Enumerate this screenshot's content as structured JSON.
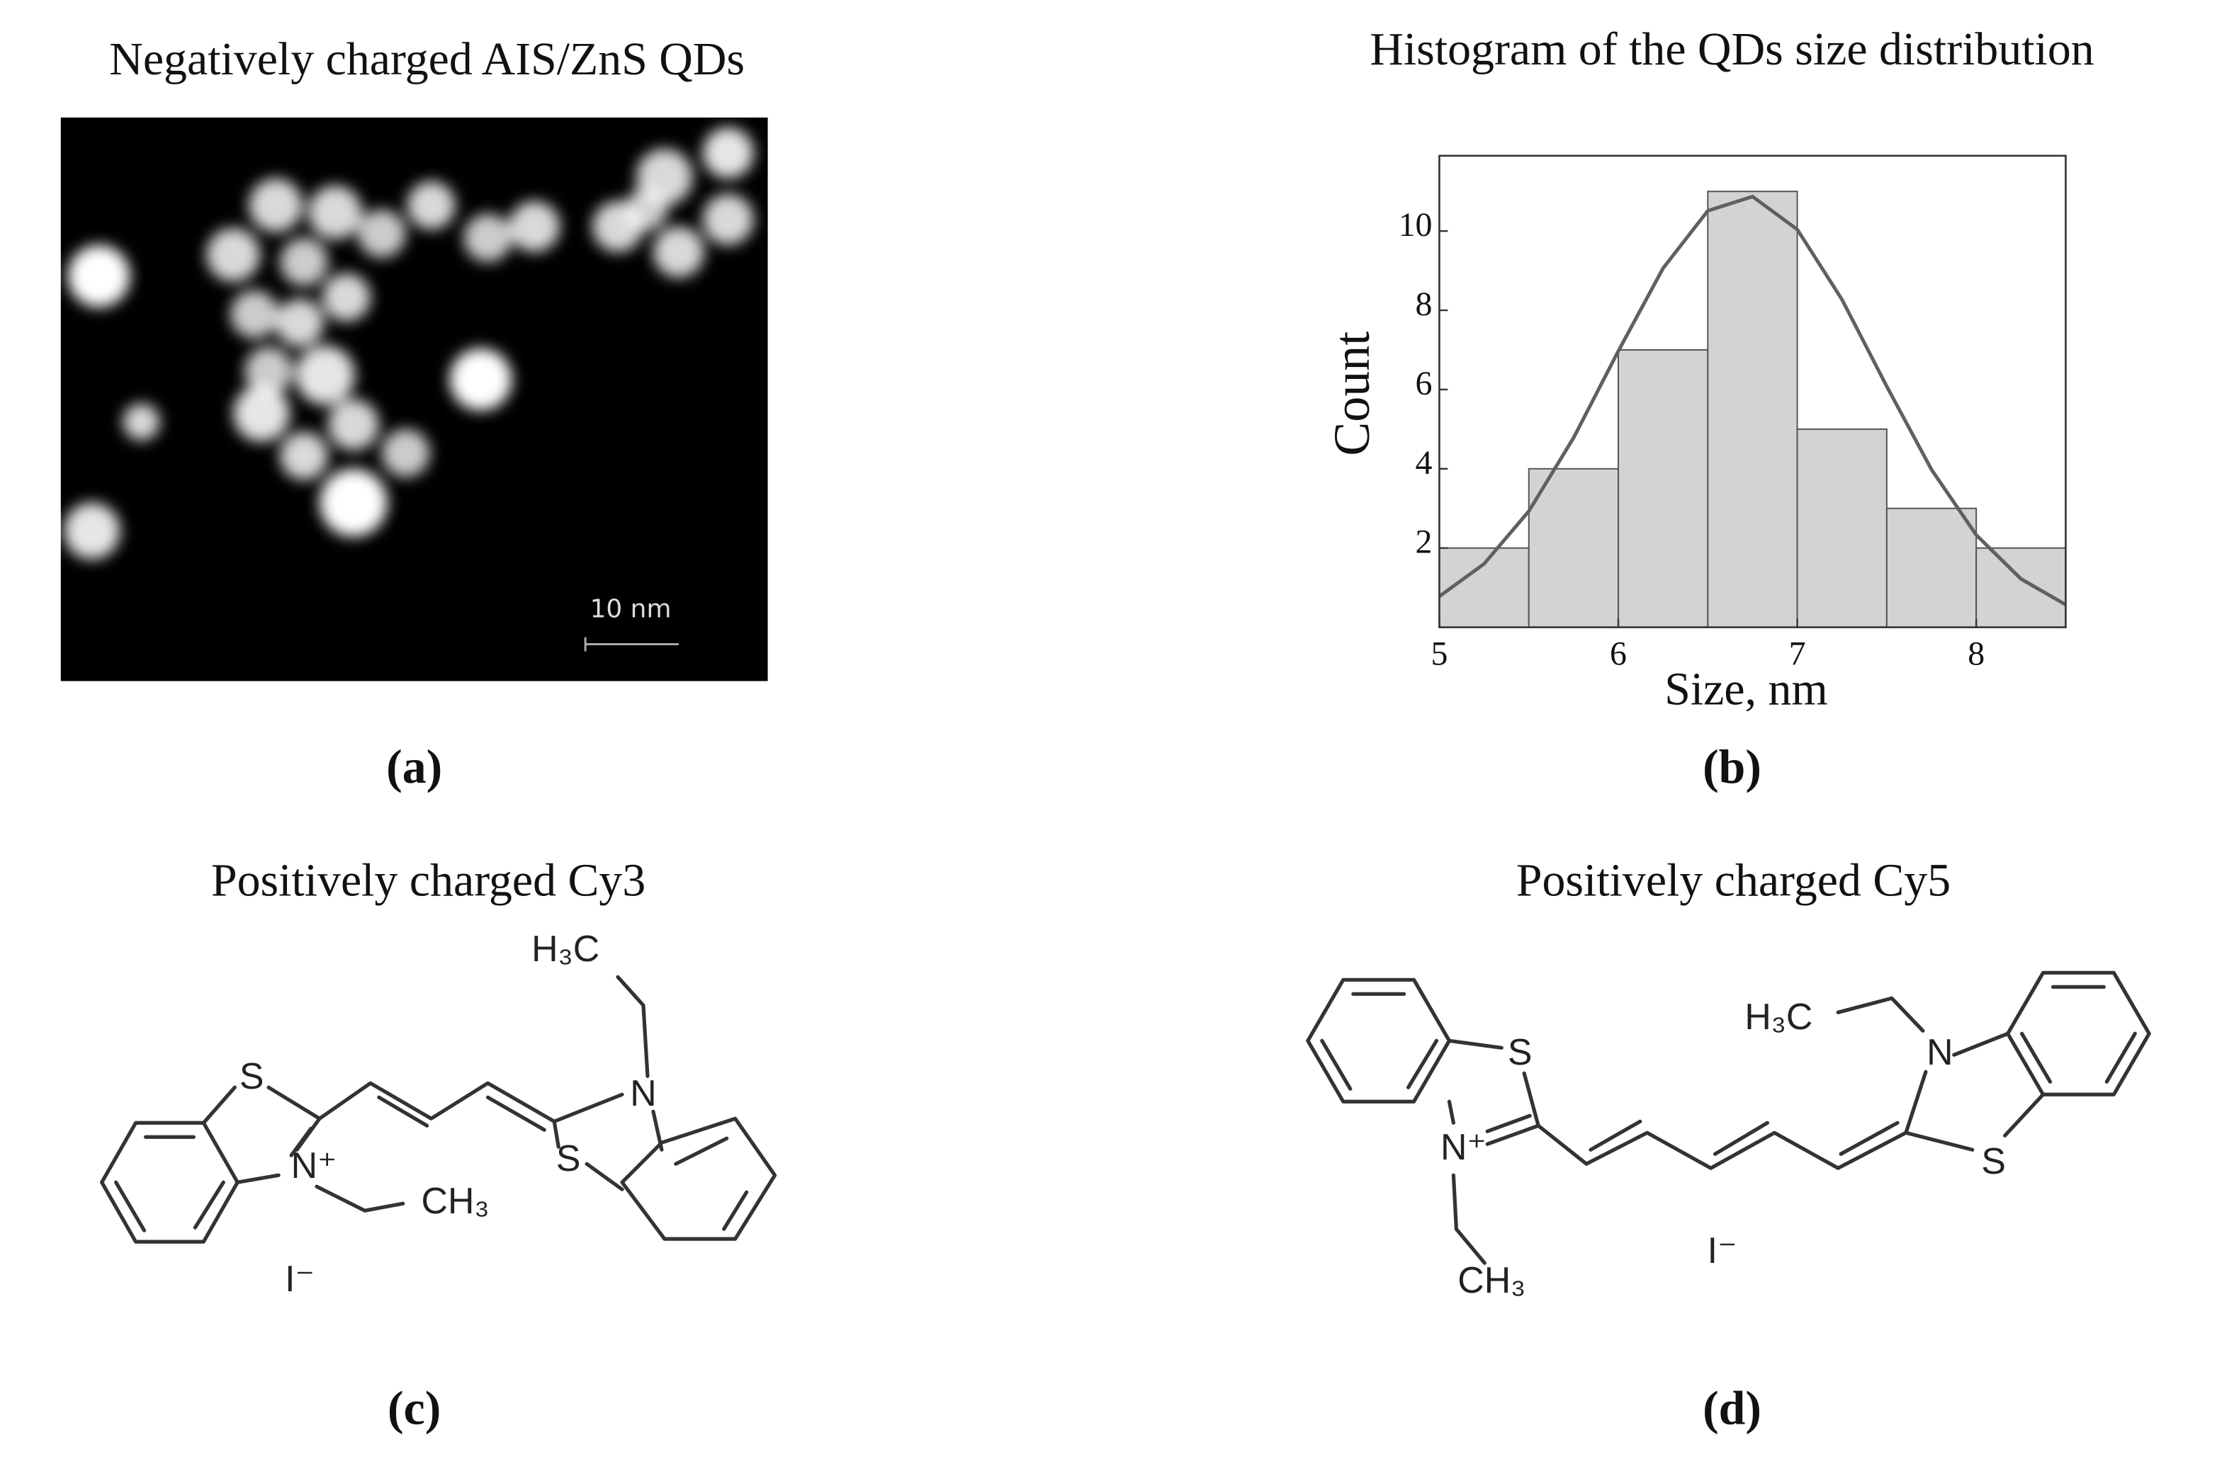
{
  "panel_a": {
    "title": "Negatively charged AIS/ZnS QDs",
    "scale_bar": "10 nm",
    "label": "(a)"
  },
  "chart_data": {
    "type": "histogram",
    "title": "Histogram of the QDs size distribution",
    "x_label": "Size, nm",
    "y_label": "Count",
    "label": "(b)",
    "bins": [
      5,
      5.5,
      6,
      6.5,
      7,
      7.5,
      8,
      8.5
    ],
    "values": [
      2,
      4,
      7,
      11,
      5,
      3,
      2
    ],
    "color": "#d3d3d3",
    "xlim": [
      5,
      8.5
    ],
    "ylim": [
      0,
      11.9
    ],
    "xticks": [
      5,
      6,
      7,
      8
    ],
    "yticks": [
      2,
      4,
      6,
      8,
      10
    ],
    "fit": {
      "x": [
        5,
        5.25,
        5.5,
        5.75,
        6,
        6.25,
        6.5,
        6.75,
        7,
        7.25,
        7.5,
        7.75,
        8,
        8.25,
        8.5
      ],
      "values": [
        0.78,
        1.6,
        2.93,
        4.78,
        6.97,
        9.06,
        10.51,
        10.87,
        10.04,
        8.27,
        6.08,
        3.98,
        2.33,
        1.22,
        0.57
      ],
      "color": "#606060"
    }
  },
  "panel_c": {
    "title": "Positively charged Cy3",
    "atoms": [
      "S",
      "N⁺",
      "CH₃",
      "H₃C",
      "N",
      "S",
      "I⁻"
    ],
    "label": "(c)"
  },
  "panel_d": {
    "title": "Positively charged Cy5",
    "atoms": [
      "S",
      "N⁺",
      "CH₃",
      "H₃C",
      "N",
      "S",
      "I⁻"
    ],
    "label": "(d)"
  }
}
